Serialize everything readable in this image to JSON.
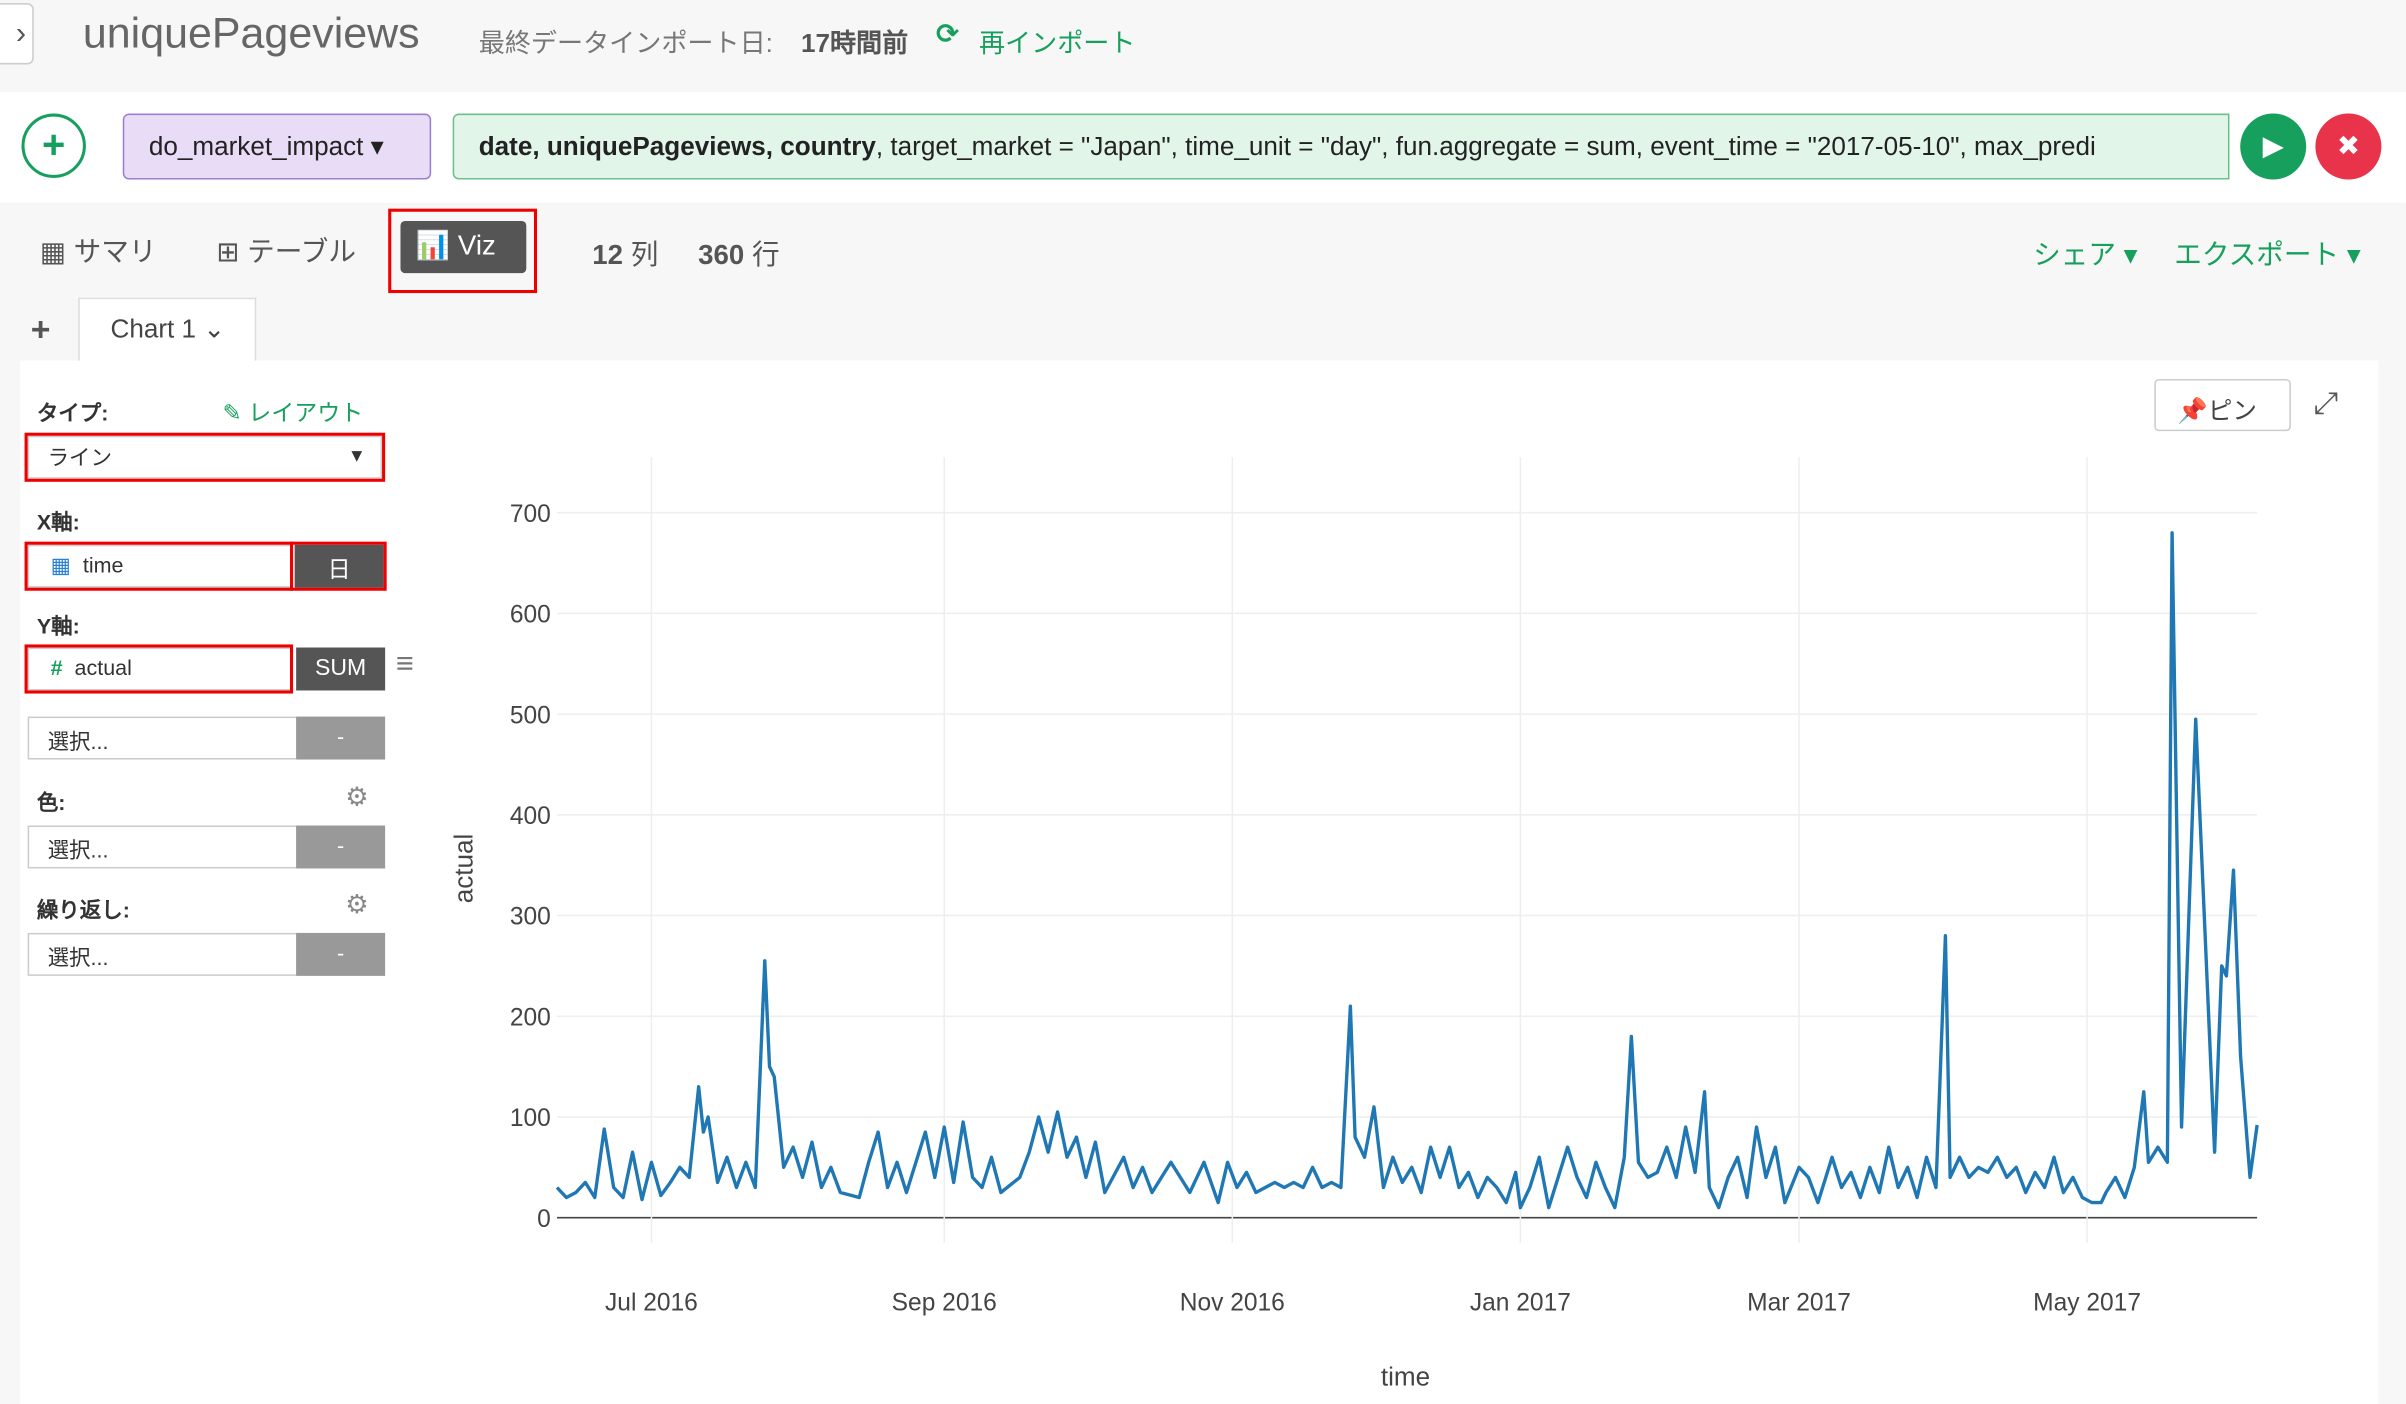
{
  "header": {
    "title": "uniquePageviews",
    "import_label": "最終データインポート日:",
    "import_time": "17時間前",
    "reimport": "再インポート"
  },
  "command": {
    "function": "do_market_impact",
    "args_bold": "date, uniquePageviews, country",
    "args_rest": ", target_market = \"Japan\", time_unit = \"day\", fun.aggregate = sum, event_time = \"2017-05-10\", max_predi"
  },
  "tabs": [
    "サマリ",
    "テーブル",
    "Viz"
  ],
  "stats": {
    "columns": "12",
    "columns_unit": "列",
    "rows": "360",
    "rows_unit": "行"
  },
  "share": "シェア",
  "export": "エクスポート",
  "chart_tab": "Chart 1",
  "pin": "ピン",
  "settings": {
    "type_label": "タイプ:",
    "layout": "レイアウト",
    "type_value": "ライン",
    "x_label": "X軸:",
    "x_value": "time",
    "x_unit": "日",
    "y_label": "Y軸:",
    "y_value": "actual",
    "y_agg": "SUM",
    "placeholder": "選択...",
    "dash": "-",
    "color_label": "色:",
    "repeat_label": "繰り返し:"
  },
  "chart_data": {
    "type": "line",
    "x_label": "time",
    "y_label": "actual",
    "color": "#1f77b4",
    "grid": true,
    "xlim": [
      -20,
      340
    ],
    "ylim": [
      -25,
      755
    ],
    "xticks": [
      {
        "value": 0,
        "label": "Jul 2016"
      },
      {
        "value": 62,
        "label": "Sep 2016"
      },
      {
        "value": 123,
        "label": "Nov 2016"
      },
      {
        "value": 184,
        "label": "Jan 2017"
      },
      {
        "value": 243,
        "label": "Mar 2017"
      },
      {
        "value": 304,
        "label": "May 2017"
      }
    ],
    "yticks": [
      0,
      100,
      200,
      300,
      400,
      500,
      600,
      700
    ],
    "x": [
      -20,
      -18,
      -16,
      -14,
      -12,
      -10,
      -8,
      -6,
      -4,
      -2,
      0,
      2,
      4,
      6,
      8,
      10,
      11,
      12,
      14,
      16,
      18,
      20,
      22,
      24,
      25,
      26,
      28,
      30,
      32,
      34,
      36,
      38,
      40,
      44,
      46,
      48,
      50,
      52,
      54,
      58,
      60,
      62,
      64,
      66,
      68,
      70,
      72,
      74,
      78,
      80,
      82,
      84,
      86,
      88,
      90,
      92,
      94,
      96,
      100,
      102,
      104,
      106,
      110,
      112,
      114,
      117,
      120,
      122,
      124,
      126,
      128,
      132,
      134,
      136,
      138,
      140,
      142,
      144,
      146,
      148,
      149,
      151,
      153,
      155,
      157,
      159,
      161,
      163,
      165,
      167,
      169,
      171,
      173,
      175,
      177,
      179,
      181,
      183,
      184,
      186,
      188,
      190,
      192,
      194,
      196,
      198,
      200,
      202,
      204,
      206,
      207.5,
      209,
      211,
      213,
      215,
      217,
      219,
      221,
      223,
      224,
      226,
      228,
      230,
      232,
      234,
      236,
      238,
      240,
      243,
      245,
      247,
      250,
      252,
      254,
      256,
      258,
      260,
      262,
      264,
      266,
      268,
      270,
      272,
      274,
      275,
      277,
      279,
      281,
      283,
      285,
      287,
      289,
      291,
      293,
      295,
      297,
      299,
      301,
      303,
      305,
      307,
      308,
      310,
      312,
      314,
      316,
      317,
      319,
      321,
      322,
      324,
      327,
      331,
      332.5,
      333.5,
      335,
      336.5,
      338.5,
      340
    ],
    "values": [
      30,
      20,
      25,
      35,
      20,
      88,
      30,
      20,
      65,
      18,
      55,
      22,
      35,
      50,
      40,
      130,
      85,
      100,
      35,
      60,
      30,
      55,
      30,
      255,
      150,
      140,
      50,
      70,
      40,
      75,
      30,
      50,
      25,
      20,
      55,
      85,
      30,
      55,
      25,
      85,
      40,
      90,
      35,
      95,
      40,
      30,
      60,
      25,
      40,
      65,
      100,
      65,
      105,
      60,
      80,
      40,
      75,
      25,
      60,
      30,
      50,
      25,
      55,
      40,
      25,
      55,
      15,
      55,
      30,
      45,
      25,
      35,
      30,
      35,
      30,
      50,
      30,
      35,
      30,
      210,
      80,
      60,
      110,
      30,
      60,
      35,
      50,
      25,
      70,
      40,
      70,
      30,
      45,
      20,
      40,
      30,
      15,
      45,
      10,
      30,
      60,
      10,
      40,
      70,
      40,
      20,
      55,
      30,
      10,
      60,
      180,
      55,
      40,
      45,
      70,
      40,
      90,
      45,
      125,
      30,
      10,
      40,
      60,
      20,
      90,
      40,
      70,
      15,
      50,
      40,
      15,
      60,
      30,
      45,
      20,
      50,
      25,
      70,
      30,
      50,
      20,
      60,
      30,
      280,
      40,
      60,
      40,
      50,
      45,
      60,
      40,
      50,
      25,
      45,
      30,
      60,
      25,
      40,
      20,
      15,
      15,
      25,
      40,
      20,
      50,
      125,
      55,
      70,
      55,
      680,
      90,
      495,
      65,
      250,
      240,
      345,
      160,
      40,
      92
    ]
  }
}
